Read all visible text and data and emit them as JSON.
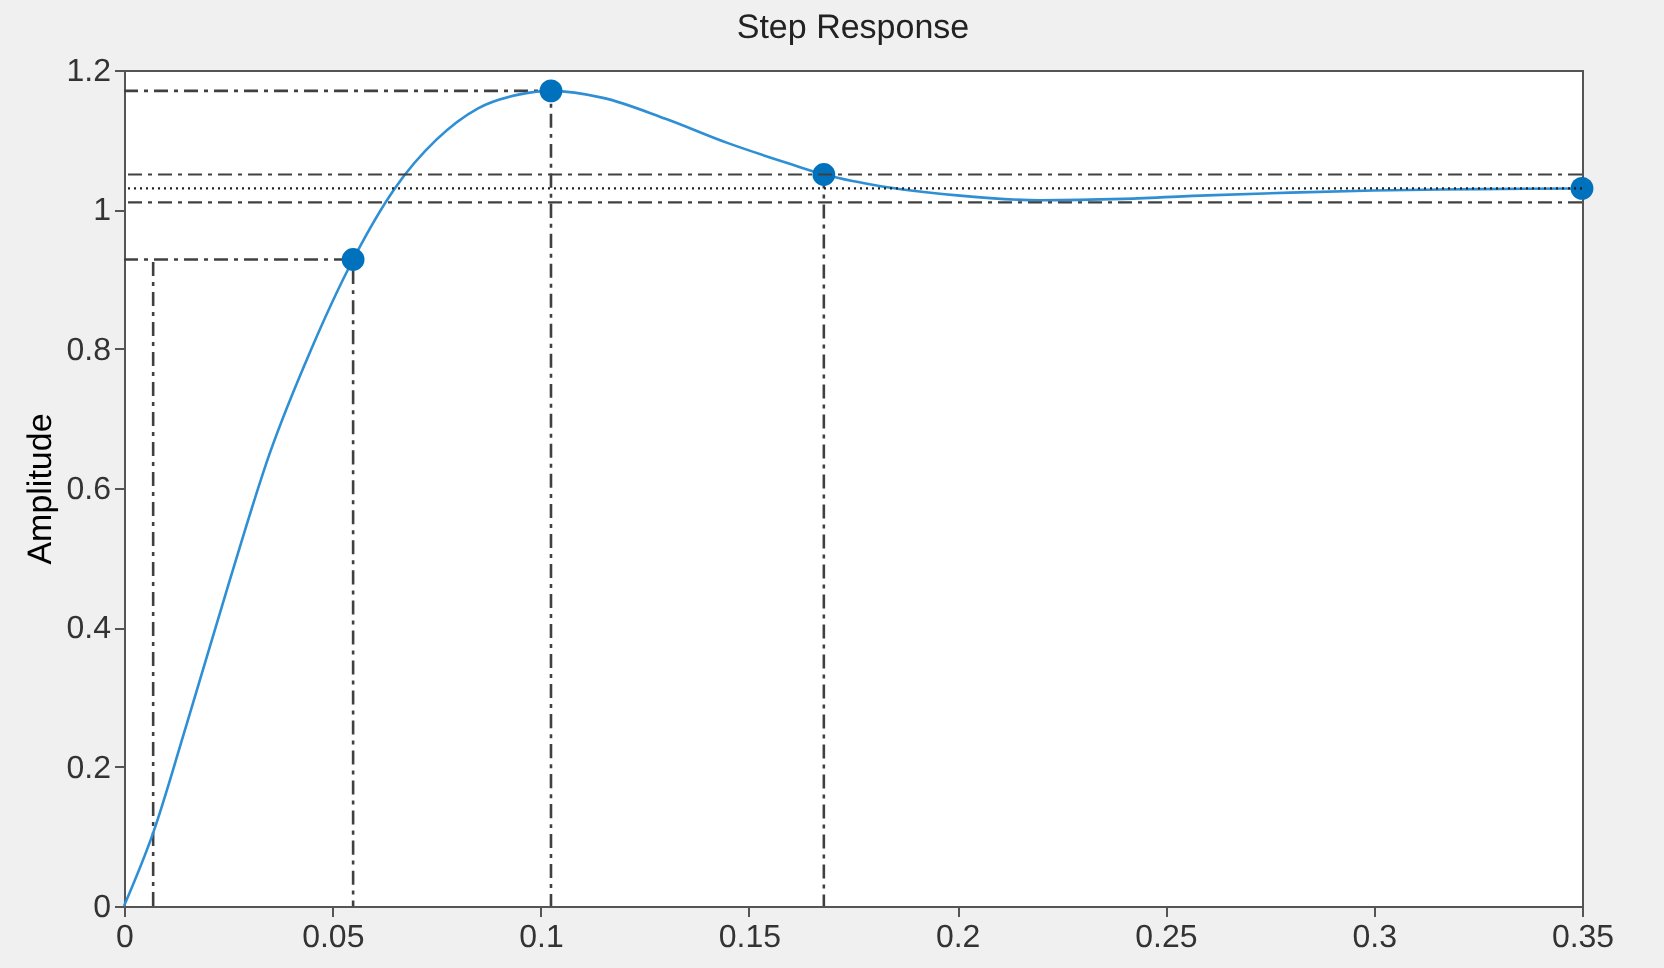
{
  "chart_data": {
    "type": "line",
    "title": "Step Response",
    "ylabel": "Amplitude",
    "xlim": [
      0,
      0.35
    ],
    "ylim": [
      0,
      1.2
    ],
    "xticks": [
      0,
      0.05,
      0.1,
      0.15,
      0.2,
      0.25,
      0.3,
      0.35
    ],
    "yticks": [
      0,
      0.2,
      0.4,
      0.6,
      0.8,
      1,
      1.2
    ],
    "series": [
      {
        "color": "#404040",
        "line_style": "dashed",
        "x": [
          0.007,
          0.007
        ],
        "values": [
          0,
          0.928
        ]
      },
      {
        "color": "#404040",
        "line_style": "dashed",
        "x": [
          0,
          0.055,
          0.055
        ],
        "values": [
          0.928,
          0.928,
          0
        ]
      },
      {
        "color": "#404040",
        "line_style": "dashed",
        "x": [
          0,
          0.1025,
          0.1025
        ],
        "values": [
          1.17,
          1.17,
          0
        ]
      },
      {
        "color": "#404040",
        "line_style": "dashed",
        "x": [
          0.168,
          0.168
        ],
        "values": [
          1.05,
          0
        ]
      },
      {
        "color": "#2f8fd4",
        "line_style": "solid",
        "x": [
          0,
          0.007,
          0.015,
          0.025,
          0.035,
          0.045,
          0.055,
          0.065,
          0.075,
          0.085,
          0.095,
          0.1025,
          0.115,
          0.13,
          0.145,
          0.16,
          0.168,
          0.18,
          0.2,
          0.22,
          0.24,
          0.26,
          0.28,
          0.3,
          0.325,
          0.35
        ],
        "values": [
          0,
          0.105,
          0.26,
          0.46,
          0.65,
          0.8,
          0.928,
          1.03,
          1.1,
          1.145,
          1.165,
          1.17,
          1.16,
          1.13,
          1.095,
          1.065,
          1.05,
          1.035,
          1.02,
          1.013,
          1.015,
          1.02,
          1.024,
          1.027,
          1.029,
          1.03
        ]
      },
      {
        "type": "scatter",
        "color": "#0072bd",
        "marker": "circle",
        "x": [
          0.055,
          0.1025,
          0.168,
          0.35
        ],
        "values": [
          0.928,
          1.17,
          1.05,
          1.03
        ]
      }
    ],
    "ref_lines": [
      {
        "axis": "y",
        "value": 1.05,
        "color": "#404040",
        "line_style": "dashed"
      },
      {
        "axis": "y",
        "value": 1.01,
        "color": "#404040",
        "line_style": "dashed"
      },
      {
        "axis": "y",
        "value": 1.03,
        "color": "#202020",
        "line_style": "dotted"
      }
    ]
  }
}
